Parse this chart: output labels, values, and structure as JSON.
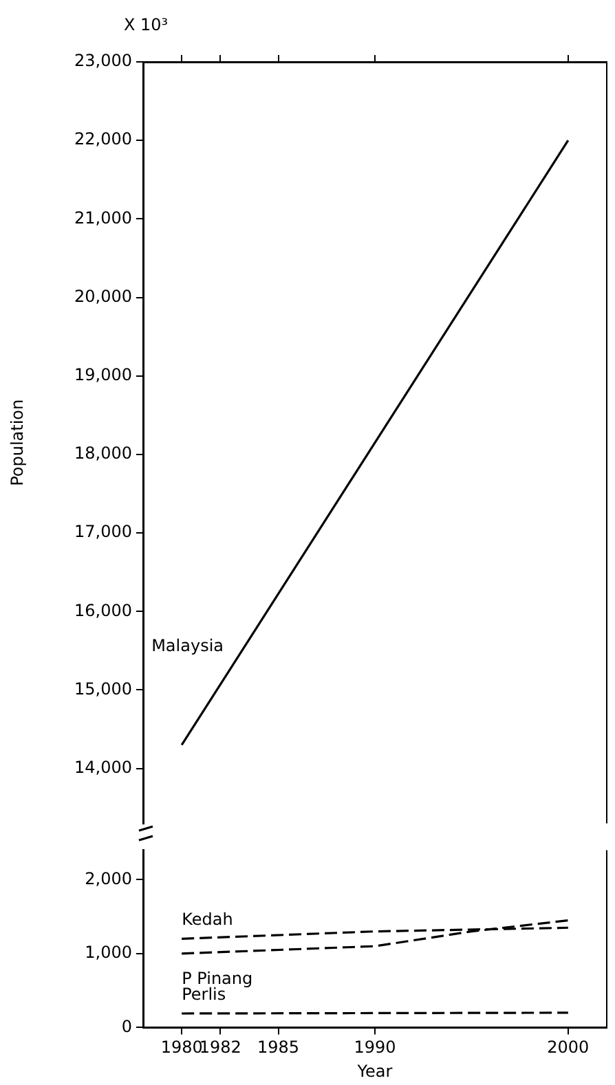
{
  "chart_data": [
    {
      "type": "line",
      "ylabel": "Population",
      "annotations": [
        "X 10³"
      ],
      "tick_labels": "y",
      "grid": false,
      "legend": false,
      "marker": "none",
      "xlim": [
        1978,
        2002
      ],
      "xticks": [
        1980,
        1982,
        1985,
        1990,
        2000
      ],
      "ylim": [
        13300,
        23000
      ],
      "yticks": [
        {
          "value": 14000,
          "label": "14,000"
        },
        {
          "value": 15000,
          "label": "15,000"
        },
        {
          "value": 16000,
          "label": "16,000"
        },
        {
          "value": 17000,
          "label": "17,000"
        },
        {
          "value": 18000,
          "label": "18,000"
        },
        {
          "value": 19000,
          "label": "19,000"
        },
        {
          "value": 20000,
          "label": "20,000"
        },
        {
          "value": 21000,
          "label": "21,000"
        },
        {
          "value": 22000,
          "label": "22,000"
        },
        {
          "value": 23000,
          "label": "23,000"
        }
      ],
      "series": [
        {
          "name": "Malaysia",
          "color": "#000000",
          "line_style": "solid",
          "x": [
            1980,
            2000
          ],
          "values": [
            14300,
            22000
          ]
        }
      ]
    },
    {
      "type": "line",
      "xlabel": "Year",
      "grid": false,
      "legend": false,
      "marker": "none",
      "xlim": [
        1978,
        2002
      ],
      "xticks": [
        1980,
        1982,
        1985,
        1990,
        2000
      ],
      "ylim": [
        0,
        2400
      ],
      "yticks": [
        0,
        {
          "value": 1000,
          "label": "1,000"
        },
        {
          "value": 2000,
          "label": "2,000"
        }
      ],
      "series": [
        {
          "name": "Kedah",
          "color": "#000000",
          "line_style": "dashed",
          "x": [
            1980,
            1990,
            2000
          ],
          "values": [
            1200,
            1300,
            1350
          ]
        },
        {
          "name": "P Pinang",
          "color": "#000000",
          "line_style": "dashed",
          "x": [
            1980,
            1990,
            1995,
            2000
          ],
          "values": [
            1000,
            1100,
            1300,
            1450
          ]
        },
        {
          "name": "Perlis",
          "color": "#000000",
          "line_style": "dashed",
          "x": [
            1980,
            2000
          ],
          "values": [
            190,
            200
          ]
        }
      ]
    }
  ]
}
